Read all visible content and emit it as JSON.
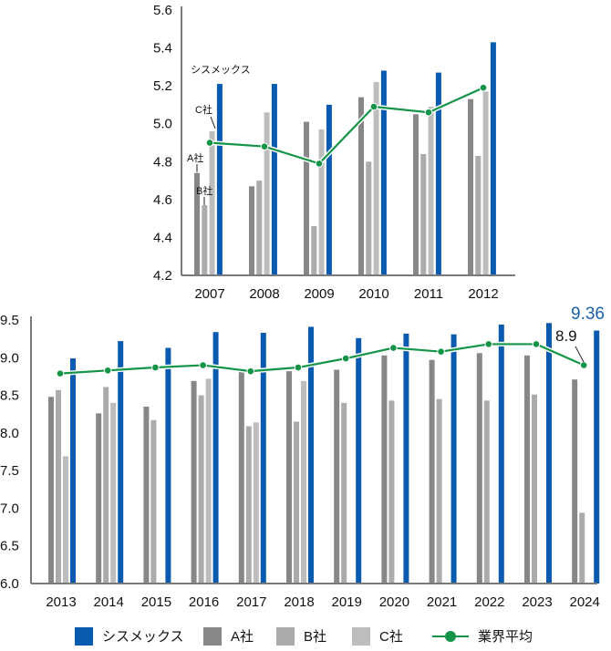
{
  "chart_data": [
    {
      "type": "bar",
      "title": "",
      "xlabel": "",
      "ylabel": "",
      "ylim": [
        4.2,
        5.6
      ],
      "yticks": [
        4.2,
        4.4,
        4.6,
        4.8,
        5.0,
        5.2,
        5.4,
        5.6
      ],
      "categories": [
        "2007",
        "2008",
        "2009",
        "2010",
        "2011",
        "2012"
      ],
      "series": [
        {
          "name": "A社",
          "type": "bar",
          "values": [
            4.74,
            4.67,
            5.01,
            5.14,
            5.05,
            5.13
          ]
        },
        {
          "name": "B社",
          "type": "bar",
          "values": [
            4.57,
            4.7,
            4.46,
            4.8,
            4.84,
            4.83
          ]
        },
        {
          "name": "C社",
          "type": "bar",
          "values": [
            4.96,
            5.06,
            4.97,
            5.22,
            5.09,
            5.17
          ]
        },
        {
          "name": "シスメックス",
          "type": "bar",
          "values": [
            5.21,
            5.21,
            5.1,
            5.28,
            5.27,
            5.43
          ]
        },
        {
          "name": "業界平均",
          "type": "line",
          "values": [
            4.9,
            4.88,
            4.79,
            5.09,
            5.06,
            5.19
          ]
        }
      ],
      "annotations": [
        "シスメックス",
        "C社",
        "A社",
        "B社"
      ],
      "grid": false
    },
    {
      "type": "bar",
      "title": "",
      "xlabel": "",
      "ylabel": "",
      "ylim": [
        6.0,
        9.5
      ],
      "yticks": [
        6.0,
        6.5,
        7.0,
        7.5,
        8.0,
        8.5,
        9.0,
        9.5
      ],
      "categories": [
        "2013",
        "2014",
        "2015",
        "2016",
        "2017",
        "2018",
        "2019",
        "2020",
        "2021",
        "2022",
        "2023",
        "2024"
      ],
      "series": [
        {
          "name": "A社",
          "type": "bar",
          "values": [
            8.48,
            8.26,
            8.35,
            8.69,
            8.81,
            8.82,
            8.84,
            9.03,
            8.97,
            9.06,
            9.03,
            8.71
          ]
        },
        {
          "name": "B社",
          "type": "bar",
          "values": [
            8.57,
            8.61,
            8.17,
            8.5,
            8.09,
            8.15,
            8.4,
            8.43,
            8.45,
            8.43,
            8.51,
            6.94
          ]
        },
        {
          "name": "C社",
          "type": "bar",
          "values": [
            7.69,
            8.4,
            null,
            8.72,
            8.14,
            8.69,
            null,
            null,
            null,
            null,
            null,
            null
          ]
        },
        {
          "name": "シスメックス",
          "type": "bar",
          "values": [
            8.99,
            9.22,
            9.13,
            9.34,
            9.33,
            9.41,
            9.26,
            9.32,
            9.31,
            9.44,
            9.46,
            9.36
          ]
        },
        {
          "name": "業界平均",
          "type": "line",
          "values": [
            8.79,
            8.83,
            8.87,
            8.9,
            8.82,
            8.87,
            8.99,
            9.13,
            9.08,
            9.18,
            9.18,
            8.9
          ]
        }
      ],
      "annotations": [
        "9.36",
        "8.9"
      ],
      "grid": false
    }
  ],
  "colors": {
    "sysmex": "#0a5bb0",
    "a": "#878787",
    "b": "#ababab",
    "c": "#bdbdbd",
    "avg": "#149447",
    "axis": "#7a7a7a",
    "highlight_label": "#1a5fa8"
  },
  "top_annotations": {
    "sysmex": "シスメックス",
    "c": "C社",
    "a": "A社",
    "b": "B社"
  },
  "bottom_annotations": {
    "sysmex_value": "9.36",
    "avg_value": "8.9"
  },
  "legend": [
    {
      "label": "シスメックス",
      "kind": "bar"
    },
    {
      "label": "A社",
      "kind": "bar"
    },
    {
      "label": "B社",
      "kind": "bar"
    },
    {
      "label": "C社",
      "kind": "bar"
    },
    {
      "label": "業界平均",
      "kind": "line"
    }
  ]
}
